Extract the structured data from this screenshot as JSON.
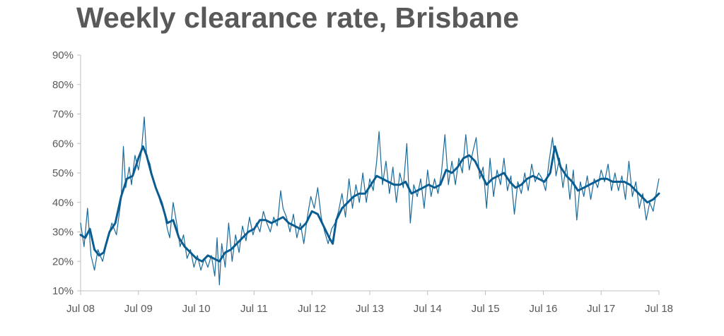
{
  "chart_data": {
    "type": "line",
    "title": "Weekly clearance rate, Brisbane",
    "xlabel": "",
    "ylabel": "",
    "x_ticks": [
      "Jul 08",
      "Jul 09",
      "Jul 10",
      "Jul 11",
      "Jul 12",
      "Jul 13",
      "Jul 14",
      "Jul 15",
      "Jul 16",
      "Jul 17",
      "Jul 18"
    ],
    "y_ticks": [
      "10%",
      "20%",
      "30%",
      "40%",
      "50%",
      "60%",
      "70%",
      "80%",
      "90%"
    ],
    "xlim": [
      2008.5,
      2018.5
    ],
    "ylim": [
      10,
      90
    ],
    "grid": false,
    "legend": "none",
    "colors": {
      "weekly": "#1a6a9a",
      "smoothed": "#0b5d91",
      "axis": "#bfbfbf",
      "text": "#595959"
    },
    "series": [
      {
        "style": "thin",
        "points": [
          [
            2008.5,
            33
          ],
          [
            2008.56,
            25
          ],
          [
            2008.62,
            38
          ],
          [
            2008.68,
            22
          ],
          [
            2008.74,
            17
          ],
          [
            2008.8,
            24
          ],
          [
            2008.88,
            20
          ],
          [
            2008.96,
            27
          ],
          [
            2009.04,
            33
          ],
          [
            2009.12,
            29
          ],
          [
            2009.2,
            41
          ],
          [
            2009.24,
            59
          ],
          [
            2009.28,
            45
          ],
          [
            2009.34,
            52
          ],
          [
            2009.38,
            46
          ],
          [
            2009.44,
            56
          ],
          [
            2009.5,
            51
          ],
          [
            2009.55,
            57
          ],
          [
            2009.6,
            69
          ],
          [
            2009.64,
            56
          ],
          [
            2009.7,
            53
          ],
          [
            2009.76,
            47
          ],
          [
            2009.82,
            44
          ],
          [
            2009.88,
            40
          ],
          [
            2009.94,
            37
          ],
          [
            2010.0,
            31
          ],
          [
            2010.04,
            28
          ],
          [
            2010.1,
            40
          ],
          [
            2010.16,
            33
          ],
          [
            2010.22,
            25
          ],
          [
            2010.28,
            29
          ],
          [
            2010.34,
            21
          ],
          [
            2010.4,
            24
          ],
          [
            2010.46,
            18
          ],
          [
            2010.52,
            22
          ],
          [
            2010.58,
            17
          ],
          [
            2010.64,
            21
          ],
          [
            2010.7,
            18
          ],
          [
            2010.76,
            22
          ],
          [
            2010.82,
            15
          ],
          [
            2010.86,
            28
          ],
          [
            2010.9,
            12
          ],
          [
            2010.94,
            26
          ],
          [
            2011.0,
            18
          ],
          [
            2011.06,
            33
          ],
          [
            2011.12,
            20
          ],
          [
            2011.18,
            29
          ],
          [
            2011.24,
            23
          ],
          [
            2011.3,
            32
          ],
          [
            2011.36,
            27
          ],
          [
            2011.42,
            35
          ],
          [
            2011.48,
            29
          ],
          [
            2011.54,
            33
          ],
          [
            2011.6,
            30
          ],
          [
            2011.66,
            37
          ],
          [
            2011.72,
            33
          ],
          [
            2011.78,
            30
          ],
          [
            2011.84,
            35
          ],
          [
            2011.9,
            32
          ],
          [
            2011.96,
            44
          ],
          [
            2012.0,
            38
          ],
          [
            2012.06,
            35
          ],
          [
            2012.12,
            30
          ],
          [
            2012.18,
            36
          ],
          [
            2012.24,
            28
          ],
          [
            2012.3,
            33
          ],
          [
            2012.36,
            26
          ],
          [
            2012.42,
            35
          ],
          [
            2012.48,
            42
          ],
          [
            2012.54,
            38
          ],
          [
            2012.6,
            45
          ],
          [
            2012.66,
            35
          ],
          [
            2012.72,
            30
          ],
          [
            2012.78,
            26
          ],
          [
            2012.84,
            31
          ],
          [
            2012.9,
            33
          ],
          [
            2012.96,
            37
          ],
          [
            2013.02,
            43
          ],
          [
            2013.08,
            35
          ],
          [
            2013.14,
            48
          ],
          [
            2013.2,
            38
          ],
          [
            2013.26,
            46
          ],
          [
            2013.32,
            40
          ],
          [
            2013.38,
            50
          ],
          [
            2013.44,
            40
          ],
          [
            2013.5,
            48
          ],
          [
            2013.56,
            44
          ],
          [
            2013.62,
            54
          ],
          [
            2013.66,
            64
          ],
          [
            2013.72,
            46
          ],
          [
            2013.78,
            54
          ],
          [
            2013.84,
            43
          ],
          [
            2013.9,
            52
          ],
          [
            2013.96,
            40
          ],
          [
            2014.02,
            50
          ],
          [
            2014.08,
            45
          ],
          [
            2014.14,
            60
          ],
          [
            2014.2,
            33
          ],
          [
            2014.26,
            46
          ],
          [
            2014.32,
            42
          ],
          [
            2014.38,
            48
          ],
          [
            2014.44,
            38
          ],
          [
            2014.5,
            51
          ],
          [
            2014.56,
            42
          ],
          [
            2014.62,
            48
          ],
          [
            2014.68,
            43
          ],
          [
            2014.74,
            50
          ],
          [
            2014.8,
            63
          ],
          [
            2014.86,
            46
          ],
          [
            2014.92,
            54
          ],
          [
            2014.98,
            46
          ],
          [
            2015.04,
            55
          ],
          [
            2015.1,
            50
          ],
          [
            2015.16,
            63
          ],
          [
            2015.22,
            51
          ],
          [
            2015.28,
            57
          ],
          [
            2015.34,
            62
          ],
          [
            2015.4,
            48
          ],
          [
            2015.46,
            52
          ],
          [
            2015.52,
            38
          ],
          [
            2015.58,
            55
          ],
          [
            2015.64,
            42
          ],
          [
            2015.7,
            51
          ],
          [
            2015.76,
            46
          ],
          [
            2015.82,
            55
          ],
          [
            2015.88,
            44
          ],
          [
            2015.94,
            49
          ],
          [
            2016.0,
            36
          ],
          [
            2016.06,
            47
          ],
          [
            2016.12,
            43
          ],
          [
            2016.18,
            50
          ],
          [
            2016.24,
            44
          ],
          [
            2016.3,
            53
          ],
          [
            2016.36,
            47
          ],
          [
            2016.42,
            50
          ],
          [
            2016.48,
            48
          ],
          [
            2016.54,
            44
          ],
          [
            2016.6,
            54
          ],
          [
            2016.66,
            62
          ],
          [
            2016.72,
            49
          ],
          [
            2016.78,
            55
          ],
          [
            2016.84,
            45
          ],
          [
            2016.9,
            53
          ],
          [
            2016.96,
            41
          ],
          [
            2017.02,
            51
          ],
          [
            2017.08,
            34
          ],
          [
            2017.14,
            47
          ],
          [
            2017.2,
            42
          ],
          [
            2017.26,
            49
          ],
          [
            2017.32,
            41
          ],
          [
            2017.38,
            48
          ],
          [
            2017.44,
            45
          ],
          [
            2017.5,
            51
          ],
          [
            2017.56,
            47
          ],
          [
            2017.62,
            53
          ],
          [
            2017.68,
            44
          ],
          [
            2017.74,
            50
          ],
          [
            2017.8,
            44
          ],
          [
            2017.86,
            49
          ],
          [
            2017.92,
            41
          ],
          [
            2017.98,
            54
          ],
          [
            2018.04,
            42
          ],
          [
            2018.1,
            47
          ],
          [
            2018.16,
            38
          ],
          [
            2018.22,
            43
          ],
          [
            2018.28,
            34
          ],
          [
            2018.34,
            40
          ],
          [
            2018.4,
            37
          ],
          [
            2018.46,
            44
          ],
          [
            2018.5,
            48
          ]
        ]
      },
      {
        "style": "thick",
        "points": [
          [
            2008.5,
            29
          ],
          [
            2008.58,
            28
          ],
          [
            2008.66,
            31
          ],
          [
            2008.74,
            24
          ],
          [
            2008.82,
            22
          ],
          [
            2008.9,
            23
          ],
          [
            2009.0,
            30
          ],
          [
            2009.1,
            33
          ],
          [
            2009.2,
            42
          ],
          [
            2009.3,
            48
          ],
          [
            2009.4,
            49
          ],
          [
            2009.5,
            55
          ],
          [
            2009.58,
            59
          ],
          [
            2009.64,
            56
          ],
          [
            2009.72,
            50
          ],
          [
            2009.8,
            45
          ],
          [
            2009.9,
            40
          ],
          [
            2010.0,
            33
          ],
          [
            2010.1,
            34
          ],
          [
            2010.2,
            28
          ],
          [
            2010.3,
            25
          ],
          [
            2010.4,
            23
          ],
          [
            2010.5,
            21
          ],
          [
            2010.6,
            20
          ],
          [
            2010.7,
            22
          ],
          [
            2010.8,
            21
          ],
          [
            2010.9,
            20
          ],
          [
            2011.0,
            23
          ],
          [
            2011.1,
            24
          ],
          [
            2011.2,
            26
          ],
          [
            2011.3,
            28
          ],
          [
            2011.4,
            30
          ],
          [
            2011.5,
            31
          ],
          [
            2011.6,
            34
          ],
          [
            2011.7,
            34
          ],
          [
            2011.8,
            33
          ],
          [
            2011.9,
            34
          ],
          [
            2012.0,
            35
          ],
          [
            2012.1,
            33
          ],
          [
            2012.2,
            32
          ],
          [
            2012.3,
            31
          ],
          [
            2012.4,
            33
          ],
          [
            2012.5,
            37
          ],
          [
            2012.6,
            36
          ],
          [
            2012.7,
            32
          ],
          [
            2012.8,
            28
          ],
          [
            2012.86,
            26
          ],
          [
            2012.92,
            34
          ],
          [
            2013.02,
            38
          ],
          [
            2013.12,
            40
          ],
          [
            2013.22,
            42
          ],
          [
            2013.32,
            43
          ],
          [
            2013.42,
            43
          ],
          [
            2013.52,
            46
          ],
          [
            2013.62,
            49
          ],
          [
            2013.72,
            48
          ],
          [
            2013.82,
            47
          ],
          [
            2013.92,
            46
          ],
          [
            2014.02,
            46
          ],
          [
            2014.12,
            47
          ],
          [
            2014.22,
            43
          ],
          [
            2014.32,
            44
          ],
          [
            2014.42,
            45
          ],
          [
            2014.52,
            46
          ],
          [
            2014.62,
            45
          ],
          [
            2014.72,
            46
          ],
          [
            2014.82,
            51
          ],
          [
            2014.92,
            50
          ],
          [
            2015.02,
            52
          ],
          [
            2015.12,
            55
          ],
          [
            2015.22,
            56
          ],
          [
            2015.32,
            54
          ],
          [
            2015.42,
            50
          ],
          [
            2015.52,
            46
          ],
          [
            2015.62,
            48
          ],
          [
            2015.72,
            49
          ],
          [
            2015.82,
            50
          ],
          [
            2015.92,
            47
          ],
          [
            2016.02,
            45
          ],
          [
            2016.12,
            46
          ],
          [
            2016.22,
            48
          ],
          [
            2016.32,
            49
          ],
          [
            2016.42,
            48
          ],
          [
            2016.52,
            47
          ],
          [
            2016.62,
            50
          ],
          [
            2016.7,
            59
          ],
          [
            2016.8,
            52
          ],
          [
            2016.9,
            49
          ],
          [
            2017.0,
            47
          ],
          [
            2017.1,
            44
          ],
          [
            2017.2,
            45
          ],
          [
            2017.3,
            46
          ],
          [
            2017.4,
            47
          ],
          [
            2017.5,
            48
          ],
          [
            2017.6,
            48
          ],
          [
            2017.7,
            47
          ],
          [
            2017.8,
            47
          ],
          [
            2017.9,
            47
          ],
          [
            2018.0,
            46
          ],
          [
            2018.1,
            44
          ],
          [
            2018.2,
            42
          ],
          [
            2018.3,
            40
          ],
          [
            2018.4,
            41
          ],
          [
            2018.5,
            43
          ]
        ]
      }
    ]
  }
}
